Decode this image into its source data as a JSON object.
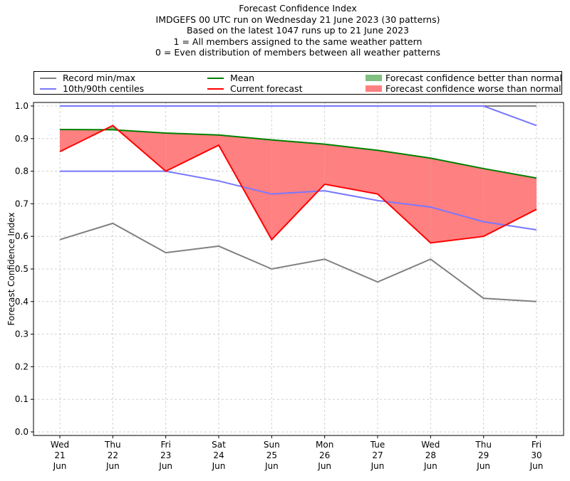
{
  "chart_data": {
    "type": "line",
    "title": "Forecast Confidence Index",
    "subtitle_lines": [
      "IMDGEFS 00 UTC run on Wednesday 21 June 2023 (30 patterns)",
      "Based on the latest 1047 runs up to 21 June 2023",
      "1 = All members assigned to the same weather pattern",
      "0 = Even distribution of members between all weather patterns"
    ],
    "xlabel": "",
    "ylabel": "Forecast Confidence Index",
    "ylim": [
      0.0,
      1.0
    ],
    "yticks": [
      "0.0",
      "0.1",
      "0.2",
      "0.3",
      "0.4",
      "0.5",
      "0.6",
      "0.7",
      "0.8",
      "0.9",
      "1.0"
    ],
    "ytick_values": [
      0,
      0.1,
      0.2,
      0.3,
      0.4,
      0.5,
      0.6,
      0.7,
      0.8,
      0.9,
      1.0
    ],
    "categories": [
      [
        "Wed",
        "21",
        "Jun"
      ],
      [
        "Thu",
        "22",
        "Jun"
      ],
      [
        "Fri",
        "23",
        "Jun"
      ],
      [
        "Sat",
        "24",
        "Jun"
      ],
      [
        "Sun",
        "25",
        "Jun"
      ],
      [
        "Mon",
        "26",
        "Jun"
      ],
      [
        "Tue",
        "27",
        "Jun"
      ],
      [
        "Wed",
        "28",
        "Jun"
      ],
      [
        "Thu",
        "29",
        "Jun"
      ],
      [
        "Fri",
        "30",
        "Jun"
      ]
    ],
    "grid": true,
    "legend_position": "top (above plot, 3 columns)",
    "series": [
      {
        "name": "Record min/max",
        "key": "record_max",
        "color": "#808080",
        "values": [
          1.0,
          1.0,
          1.0,
          1.0,
          1.0,
          1.0,
          1.0,
          1.0,
          1.0,
          1.0
        ]
      },
      {
        "name": "Record min/max",
        "key": "record_min",
        "color": "#808080",
        "values": [
          0.59,
          0.64,
          0.55,
          0.57,
          0.5,
          0.53,
          0.46,
          0.53,
          0.41,
          0.4
        ]
      },
      {
        "name": "10th/90th centiles",
        "key": "p90",
        "color": "#7777ff",
        "values": [
          1.0,
          1.0,
          1.0,
          1.0,
          1.0,
          1.0,
          1.0,
          1.0,
          1.0,
          0.94
        ]
      },
      {
        "name": "10th/90th centiles",
        "key": "p10",
        "color": "#7777ff",
        "values": [
          0.8,
          0.8,
          0.8,
          0.77,
          0.73,
          0.74,
          0.71,
          0.69,
          0.645,
          0.62
        ]
      },
      {
        "name": "Mean",
        "key": "mean",
        "color": "#008000",
        "values": [
          0.928,
          0.927,
          0.917,
          0.911,
          0.896,
          0.883,
          0.864,
          0.84,
          0.808,
          0.779
        ]
      },
      {
        "name": "Current forecast",
        "key": "current",
        "color": "#ff0000",
        "values": [
          0.86,
          0.94,
          0.8,
          0.88,
          0.59,
          0.76,
          0.73,
          0.58,
          0.6,
          0.683
        ]
      }
    ],
    "fills": [
      {
        "name": "Forecast confidence better than normal",
        "color": "#80c080",
        "between": [
          "current",
          "mean"
        ],
        "where": "current > mean"
      },
      {
        "name": "Forecast confidence worse than normal",
        "color": "#ff8080",
        "between": [
          "current",
          "mean"
        ],
        "where": "current < mean"
      }
    ]
  },
  "legend": [
    {
      "label": "Record min/max",
      "type": "line",
      "color": "#808080"
    },
    {
      "label": "10th/90th centiles",
      "type": "line",
      "color": "#7777ff"
    },
    {
      "label": "Mean",
      "type": "line",
      "color": "#008000"
    },
    {
      "label": "Current forecast",
      "type": "line",
      "color": "#ff0000"
    },
    {
      "label": "Forecast confidence better than normal",
      "type": "patch",
      "color": "#80c080"
    },
    {
      "label": "Forecast confidence worse than normal",
      "type": "patch",
      "color": "#ff8080"
    }
  ]
}
